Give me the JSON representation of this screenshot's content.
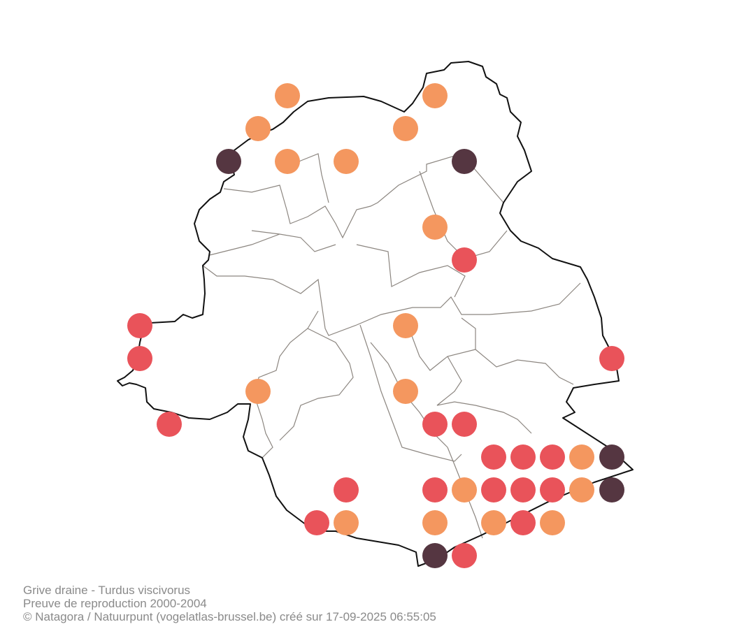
{
  "caption": {
    "species": "Grive draine - Turdus viscivorus",
    "dataset": "Preuve de reproduction 2000-2004",
    "credit": "© Natagora / Natuurpunt (vogelatlas-brussel.be) créé sur 17-09-2025 06:55:05"
  }
}
